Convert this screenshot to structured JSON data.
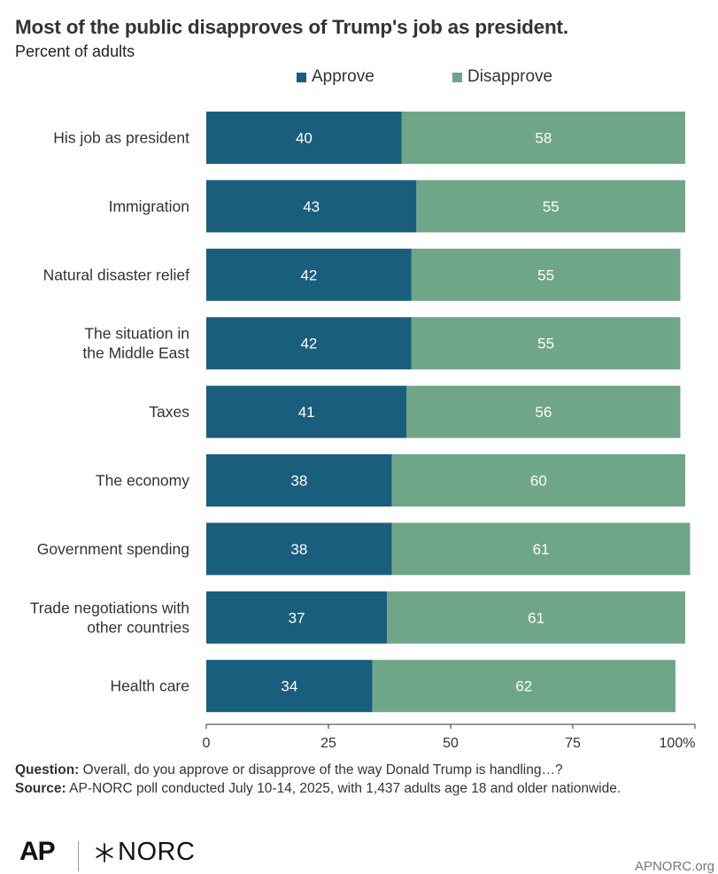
{
  "title": "Most of the public disapproves of Trump's job as president.",
  "subtitle": "Percent of adults",
  "colors": {
    "approve": "#1a5e7e",
    "disapprove": "#6fa688",
    "axis": "#333333"
  },
  "chart_data": {
    "type": "bar",
    "orientation": "horizontal",
    "stacked": true,
    "categories": [
      "His job as president",
      "Immigration",
      "Natural disaster relief",
      "The situation in the Middle East",
      "Taxes",
      "The economy",
      "Government spending",
      "Trade negotiations with other countries",
      "Health care"
    ],
    "category_lines": [
      [
        "His job as president"
      ],
      [
        "Immigration"
      ],
      [
        "Natural disaster relief"
      ],
      [
        "The situation in",
        "the Middle East"
      ],
      [
        "Taxes"
      ],
      [
        "The economy"
      ],
      [
        "Government spending"
      ],
      [
        "Trade negotiations with",
        "other countries"
      ],
      [
        "Health care"
      ]
    ],
    "series": [
      {
        "name": "Approve",
        "values": [
          40,
          43,
          42,
          42,
          41,
          38,
          38,
          37,
          34
        ]
      },
      {
        "name": "Disapprove",
        "values": [
          58,
          55,
          55,
          55,
          56,
          60,
          61,
          61,
          62
        ]
      }
    ],
    "xlim": [
      0,
      100
    ],
    "xticks": [
      0,
      25,
      50,
      75,
      100
    ],
    "xtick_labels": [
      "0",
      "25",
      "50",
      "75",
      "100%"
    ],
    "legend_position": "top",
    "grid": false
  },
  "notes": {
    "question_label": "Question:",
    "question_text": " Overall, do you approve or disapprove of the way Donald Trump is handling…?",
    "source_label": "Source:",
    "source_text": " AP-NORC poll conducted July 10-14, 2025, with 1,437 adults age 18 and older nationwide."
  },
  "logos": {
    "ap": "AP",
    "norc": "NORC"
  },
  "site": "APNORC.org"
}
